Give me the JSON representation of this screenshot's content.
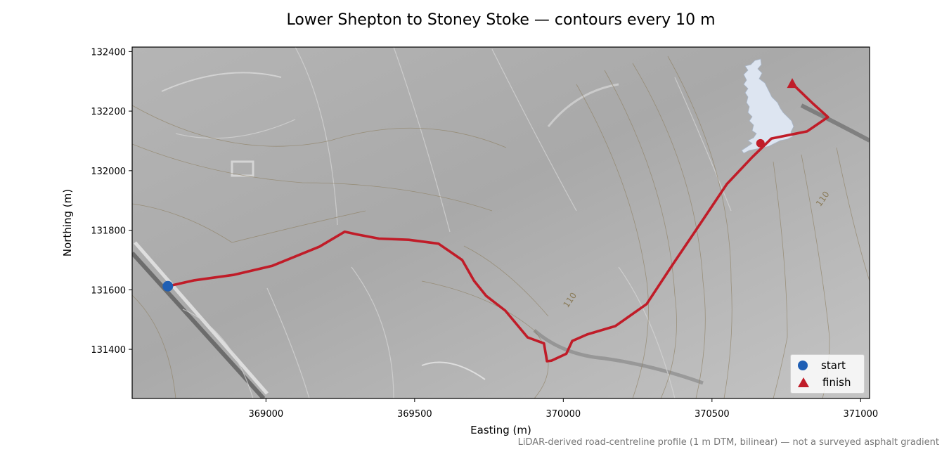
{
  "title": "Lower Shepton to Stoney Stoke — contours every 10 m",
  "xlabel": "Easting (m)",
  "ylabel": "Northing (m)",
  "footnote": "LiDAR-derived road-centreline profile (1 m DTM, bilinear) — not a surveyed asphalt gradient",
  "colors": {
    "route": "#c01c28",
    "start": "#1f5fb4",
    "finish": "#c01c28",
    "inset_land": "#dde5f1"
  },
  "legend": {
    "start_label": "start",
    "finish_label": "finish",
    "placement": "lower-right"
  },
  "chart_data": {
    "type": "line",
    "xlim": [
      368550,
      371030
    ],
    "ylim": [
      131235,
      132415
    ],
    "x_ticks": [
      369000,
      369500,
      370000,
      370500,
      371000
    ],
    "y_ticks": [
      131400,
      131600,
      131800,
      132000,
      132200,
      132400
    ],
    "contour_labels": [
      {
        "text": "110",
        "x": 370030,
        "y": 131560
      },
      {
        "text": "110",
        "x": 370880,
        "y": 131900
      }
    ],
    "route": {
      "x": [
        368670,
        368760,
        368890,
        369020,
        369180,
        369265,
        369310,
        369380,
        369480,
        369580,
        369660,
        369700,
        369740,
        369805,
        369880,
        369935,
        369945,
        369960,
        370010,
        370030,
        370080,
        370175,
        370280,
        370370,
        370460,
        370550,
        370635,
        370700,
        370820,
        370890,
        370840,
        370770
      ],
      "y": [
        131612,
        131632,
        131650,
        131680,
        131745,
        131795,
        131785,
        131772,
        131768,
        131755,
        131700,
        131630,
        131580,
        131530,
        131440,
        131420,
        131360,
        131362,
        131385,
        131428,
        131450,
        131478,
        131552,
        131688,
        131821,
        131955,
        132045,
        132108,
        132132,
        132180,
        132225,
        132292
      ]
    },
    "start": {
      "x": 368670,
      "y": 131612
    },
    "finish": {
      "x": 370770,
      "y": 132292
    },
    "inset_marker": {
      "x": 370663,
      "y": 132092
    }
  }
}
